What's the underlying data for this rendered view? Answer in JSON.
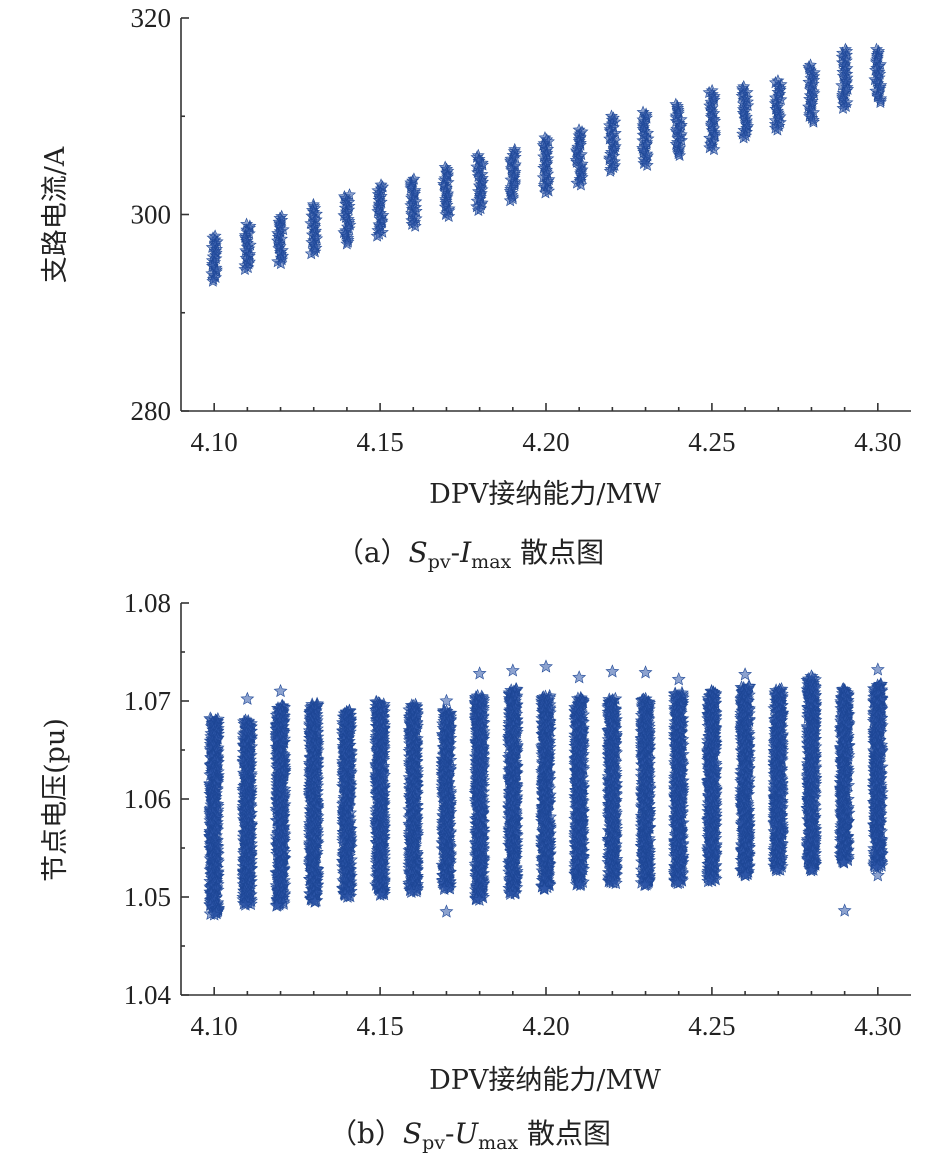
{
  "chart_data": [
    {
      "type": "scatter",
      "caption": "（a）Spv-Imax 散点图",
      "caption_parts": [
        "（a）",
        "S",
        "pv",
        "-",
        "I",
        "max",
        " 散点图"
      ],
      "xlabel": "DPV接纳能力/MW",
      "ylabel": "支路电流/A",
      "xlim": [
        4.09,
        4.31
      ],
      "ylim": [
        280,
        320
      ],
      "xticks": [
        4.1,
        4.15,
        4.2,
        4.25,
        4.3
      ],
      "xtick_labels": [
        "4.10",
        "4.15",
        "4.20",
        "4.25",
        "4.30"
      ],
      "yticks": [
        280,
        300,
        320
      ],
      "ytick_labels": [
        "280",
        "300",
        "320"
      ],
      "marker": "star",
      "color": "#2e56a8",
      "series": [
        {
          "points_by_x": [
            {
              "x": 4.1,
              "y_min": 293.2,
              "y_max": 297.8
            },
            {
              "x": 4.11,
              "y_min": 294.4,
              "y_max": 299.0
            },
            {
              "x": 4.12,
              "y_min": 295.0,
              "y_max": 299.8
            },
            {
              "x": 4.13,
              "y_min": 296.0,
              "y_max": 301.0
            },
            {
              "x": 4.14,
              "y_min": 297.0,
              "y_max": 302.0
            },
            {
              "x": 4.15,
              "y_min": 297.8,
              "y_max": 303.0
            },
            {
              "x": 4.16,
              "y_min": 298.8,
              "y_max": 303.6
            },
            {
              "x": 4.17,
              "y_min": 299.8,
              "y_max": 304.8
            },
            {
              "x": 4.18,
              "y_min": 300.4,
              "y_max": 306.0
            },
            {
              "x": 4.19,
              "y_min": 301.4,
              "y_max": 306.6
            },
            {
              "x": 4.2,
              "y_min": 302.2,
              "y_max": 307.8
            },
            {
              "x": 4.21,
              "y_min": 303.0,
              "y_max": 308.6
            },
            {
              "x": 4.22,
              "y_min": 304.4,
              "y_max": 310.0
            },
            {
              "x": 4.23,
              "y_min": 305.0,
              "y_max": 310.4
            },
            {
              "x": 4.24,
              "y_min": 306.0,
              "y_max": 311.2
            },
            {
              "x": 4.25,
              "y_min": 306.6,
              "y_max": 312.6
            },
            {
              "x": 4.26,
              "y_min": 307.8,
              "y_max": 313.0
            },
            {
              "x": 4.27,
              "y_min": 308.6,
              "y_max": 313.6
            },
            {
              "x": 4.28,
              "y_min": 309.4,
              "y_max": 315.2
            },
            {
              "x": 4.29,
              "y_min": 310.8,
              "y_max": 316.8
            },
            {
              "x": 4.3,
              "y_min": 311.4,
              "y_max": 316.8
            }
          ]
        }
      ]
    },
    {
      "type": "scatter",
      "caption": "（b）Spv-Umax 散点图",
      "caption_parts": [
        "（b）",
        "S",
        "pv",
        "-",
        "U",
        "max",
        " 散点图"
      ],
      "xlabel": "DPV接纳能力/MW",
      "ylabel": "节点电压(pu)",
      "xlim": [
        4.09,
        4.31
      ],
      "ylim": [
        1.04,
        1.08
      ],
      "xticks": [
        4.1,
        4.15,
        4.2,
        4.25,
        4.3
      ],
      "xtick_labels": [
        "4.10",
        "4.15",
        "4.20",
        "4.25",
        "4.30"
      ],
      "yticks": [
        1.04,
        1.05,
        1.06,
        1.07,
        1.08
      ],
      "ytick_labels": [
        "1.04",
        "1.05",
        "1.06",
        "1.07",
        "1.08"
      ],
      "marker": "star",
      "color": "#2e56a8",
      "series": [
        {
          "points_by_x": [
            {
              "x": 4.1,
              "y_min": 1.0482,
              "y_max": 1.0682
            },
            {
              "x": 4.11,
              "y_min": 1.0492,
              "y_max": 1.068
            },
            {
              "x": 4.12,
              "y_min": 1.0491,
              "y_max": 1.0695
            },
            {
              "x": 4.13,
              "y_min": 1.0495,
              "y_max": 1.0697
            },
            {
              "x": 4.14,
              "y_min": 1.05,
              "y_max": 1.069
            },
            {
              "x": 4.15,
              "y_min": 1.0502,
              "y_max": 1.0699
            },
            {
              "x": 4.16,
              "y_min": 1.0505,
              "y_max": 1.0696
            },
            {
              "x": 4.17,
              "y_min": 1.0508,
              "y_max": 1.069
            },
            {
              "x": 4.18,
              "y_min": 1.0497,
              "y_max": 1.0705
            },
            {
              "x": 4.19,
              "y_min": 1.0503,
              "y_max": 1.0712
            },
            {
              "x": 4.2,
              "y_min": 1.0508,
              "y_max": 1.0705
            },
            {
              "x": 4.21,
              "y_min": 1.0512,
              "y_max": 1.0703
            },
            {
              "x": 4.22,
              "y_min": 1.0514,
              "y_max": 1.0702
            },
            {
              "x": 4.23,
              "y_min": 1.0512,
              "y_max": 1.0702
            },
            {
              "x": 4.24,
              "y_min": 1.0514,
              "y_max": 1.0708
            },
            {
              "x": 4.25,
              "y_min": 1.0516,
              "y_max": 1.071
            },
            {
              "x": 4.26,
              "y_min": 1.0522,
              "y_max": 1.0715
            },
            {
              "x": 4.27,
              "y_min": 1.0527,
              "y_max": 1.0712
            },
            {
              "x": 4.28,
              "y_min": 1.0527,
              "y_max": 1.0723
            },
            {
              "x": 4.29,
              "y_min": 1.0535,
              "y_max": 1.0712
            },
            {
              "x": 4.3,
              "y_min": 1.053,
              "y_max": 1.0717
            }
          ],
          "outliers": [
            {
              "x": 4.11,
              "y": 1.0702
            },
            {
              "x": 4.12,
              "y": 1.071
            },
            {
              "x": 4.17,
              "y": 1.0485
            },
            {
              "x": 4.17,
              "y": 1.07
            },
            {
              "x": 4.18,
              "y": 1.0728
            },
            {
              "x": 4.19,
              "y": 1.0731
            },
            {
              "x": 4.2,
              "y": 1.0735
            },
            {
              "x": 4.21,
              "y": 1.0724
            },
            {
              "x": 4.22,
              "y": 1.073
            },
            {
              "x": 4.23,
              "y": 1.0729
            },
            {
              "x": 4.24,
              "y": 1.0722
            },
            {
              "x": 4.26,
              "y": 1.0727
            },
            {
              "x": 4.28,
              "y": 1.0725
            },
            {
              "x": 4.29,
              "y": 1.0486
            },
            {
              "x": 4.3,
              "y": 1.0732
            },
            {
              "x": 4.3,
              "y": 1.0522
            }
          ]
        }
      ]
    }
  ]
}
